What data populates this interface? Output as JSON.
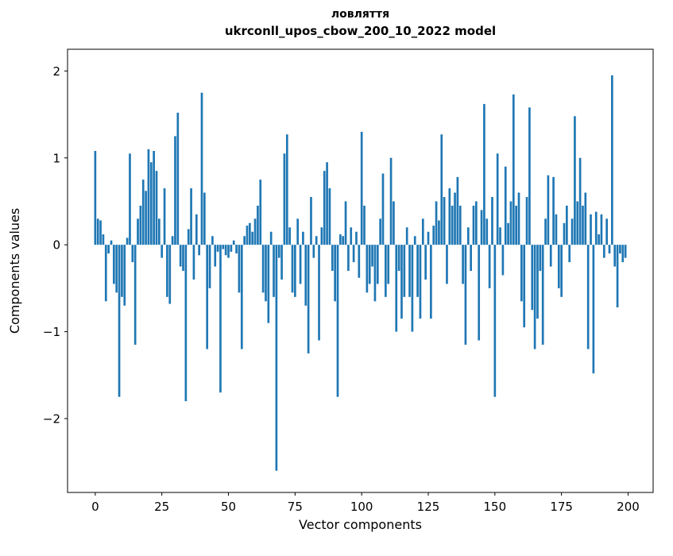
{
  "chart": {
    "title_line1": "ловляття",
    "title_line2": "ukrconll_upos_cbow_200_10_2022 model",
    "xlabel": "Vector components",
    "ylabel": "Components values"
  },
  "chart_data": {
    "type": "bar",
    "title": "ловляття\nukrconll_upos_cbow_200_10_2022 model",
    "xlabel": "Vector components",
    "ylabel": "Components values",
    "bar_color": "#1f77b4",
    "axis_color": "#000000",
    "grid": false,
    "legend": null,
    "xlim": [
      -10.4,
      209.4
    ],
    "ylim": [
      -2.85,
      2.25
    ],
    "xticks": [
      0,
      25,
      50,
      75,
      100,
      125,
      150,
      175,
      200
    ],
    "yticks": [
      -2,
      -1,
      0,
      1,
      2
    ],
    "bar_width": 0.8,
    "values": [
      1.08,
      0.3,
      0.28,
      0.12,
      -0.65,
      -0.1,
      0.05,
      -0.45,
      -0.55,
      -1.75,
      -0.6,
      -0.7,
      0.08,
      1.05,
      -0.2,
      -1.15,
      0.3,
      0.45,
      0.75,
      0.62,
      1.1,
      0.95,
      1.08,
      0.85,
      0.3,
      -0.15,
      0.65,
      -0.6,
      -0.68,
      0.1,
      1.25,
      1.52,
      -0.25,
      -0.3,
      -1.8,
      0.18,
      0.65,
      -0.4,
      0.35,
      -0.12,
      1.75,
      0.6,
      -1.2,
      -0.5,
      0.1,
      -0.25,
      -0.08,
      -1.7,
      -0.05,
      -0.12,
      -0.15,
      -0.08,
      0.05,
      -0.1,
      -0.55,
      -1.2,
      0.1,
      0.22,
      0.25,
      0.15,
      0.3,
      0.45,
      0.75,
      -0.55,
      -0.65,
      -0.9,
      0.15,
      -0.6,
      -2.6,
      -0.15,
      -0.4,
      1.05,
      1.27,
      0.2,
      -0.55,
      -0.6,
      0.3,
      -0.45,
      0.15,
      -0.7,
      -1.25,
      0.55,
      -0.15,
      0.1,
      -1.1,
      0.2,
      0.85,
      0.95,
      0.65,
      -0.3,
      -0.65,
      -1.75,
      0.12,
      0.1,
      0.5,
      -0.3,
      0.2,
      -0.2,
      0.15,
      -0.38,
      1.3,
      0.45,
      -0.55,
      -0.45,
      -0.25,
      -0.65,
      -0.45,
      0.3,
      0.82,
      -0.6,
      -0.45,
      1.0,
      0.5,
      -1.0,
      -0.3,
      -0.85,
      -0.6,
      0.2,
      -0.6,
      -1.0,
      0.1,
      -0.6,
      -0.85,
      0.3,
      -0.4,
      0.15,
      -0.85,
      0.22,
      0.5,
      0.28,
      1.27,
      0.55,
      -0.45,
      0.65,
      0.45,
      0.6,
      0.78,
      0.45,
      -0.45,
      -1.15,
      0.2,
      -0.3,
      0.45,
      0.5,
      -1.1,
      0.4,
      1.62,
      0.3,
      -0.5,
      0.55,
      -1.75,
      1.05,
      0.2,
      -0.35,
      0.9,
      0.25,
      0.5,
      1.73,
      0.45,
      0.6,
      -0.65,
      -0.95,
      0.55,
      1.58,
      -0.75,
      -1.2,
      -0.85,
      -0.3,
      -1.15,
      0.3,
      0.8,
      -0.25,
      0.78,
      0.35,
      -0.5,
      -0.6,
      0.25,
      0.45,
      -0.2,
      0.3,
      1.48,
      0.5,
      1.0,
      0.45,
      0.6,
      -1.2,
      0.35,
      -1.48,
      0.38,
      0.12,
      0.35,
      -0.15,
      0.3,
      -0.1,
      1.95,
      -0.25,
      -0.72,
      -0.1,
      -0.2,
      -0.15
    ]
  }
}
